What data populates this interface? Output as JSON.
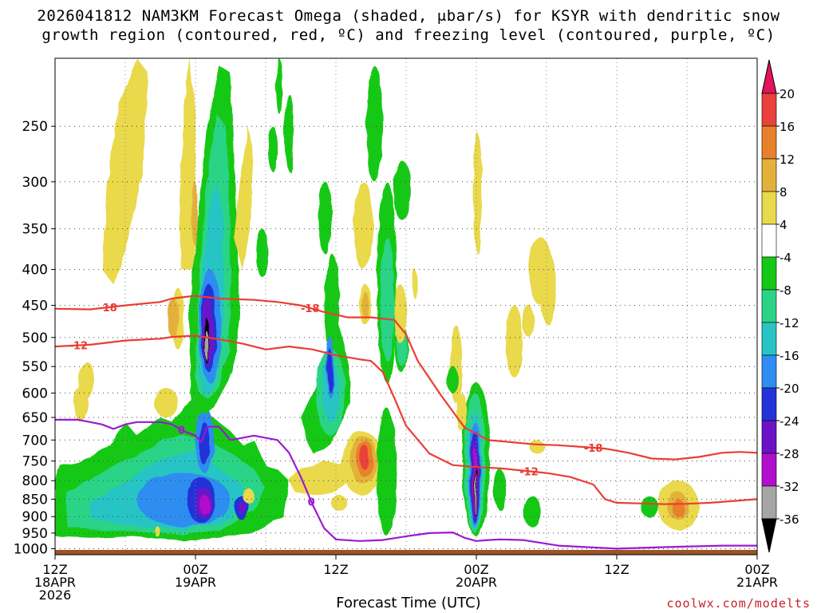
{
  "title_line1": "2026041812 NAM3KM Forecast Omega (shaded, μbar/s) for KSYR with dendritic snow",
  "title_line2": "growth region (contoured, red, ºC) and freezing level (contoured, purple, ºC)",
  "x_axis_title": "Forecast Time (UTC)",
  "credit": "coolwx.com/modelts",
  "chart_data": {
    "type": "heatmap",
    "title": "2026041812 NAM3KM Forecast Omega (shaded, μbar/s) for KSYR with dendritic snow growth region (contoured, red, ºC) and freezing level (contoured, purple, ºC)",
    "xlabel": "Forecast Time (UTC)",
    "ylabel": "",
    "x_unit": "hours since 2026-04-18 12Z",
    "xlim": [
      0,
      60
    ],
    "ylim": [
      1020,
      200
    ],
    "y_scale": "log-pressure (inverted)",
    "grid": true,
    "x_ticks": [
      {
        "value": 0,
        "lines": [
          "12Z",
          "18APR",
          "2026"
        ]
      },
      {
        "value": 12,
        "lines": [
          "00Z",
          "19APR"
        ]
      },
      {
        "value": 24,
        "lines": [
          "12Z"
        ]
      },
      {
        "value": 36,
        "lines": [
          "00Z",
          "20APR"
        ]
      },
      {
        "value": 48,
        "lines": [
          "12Z"
        ]
      },
      {
        "value": 60,
        "lines": [
          "00Z",
          "21APR"
        ]
      }
    ],
    "y_ticks": [
      250,
      300,
      350,
      400,
      450,
      500,
      550,
      600,
      650,
      700,
      750,
      800,
      850,
      900,
      950,
      1000
    ],
    "colorbar": {
      "labels": [
        "20",
        "16",
        "12",
        "8",
        "4",
        "-4",
        "-8",
        "-12",
        "-16",
        "-20",
        "-24",
        "-28",
        "-32",
        "-36"
      ],
      "colors": [
        "#e2135f",
        "#e8423a",
        "#e9802c",
        "#e3b13b",
        "#e9d94c",
        "#ffffff",
        "#14c814",
        "#2ad486",
        "#28c4c4",
        "#2e8df0",
        "#2333d8",
        "#6b12c7",
        "#b10fcb",
        "#a5a5a5",
        "#000000"
      ]
    },
    "series": [
      {
        "name": "-18",
        "type": "contour",
        "color": "#ec3c33",
        "x": [
          0,
          3,
          6,
          9,
          10,
          12,
          14,
          17,
          19,
          21,
          23,
          25,
          27,
          29,
          30,
          31,
          33,
          35,
          37,
          39,
          41,
          43,
          45,
          47,
          49,
          51,
          53,
          55,
          57,
          58.5,
          60
        ],
        "y": [
          455,
          456,
          450,
          445,
          440,
          436,
          440,
          442,
          445,
          450,
          460,
          468,
          468,
          472,
          495,
          540,
          605,
          672,
          700,
          705,
          710,
          712,
          716,
          720,
          730,
          744,
          746,
          740,
          730,
          728,
          730
        ]
      },
      {
        "name": "-12",
        "type": "contour",
        "color": "#ec3c33",
        "x": [
          0,
          3,
          6,
          9,
          10,
          12,
          14,
          16,
          18,
          20,
          22,
          23,
          24,
          26,
          27,
          28,
          29,
          30,
          32,
          34,
          36,
          38,
          40,
          42,
          44,
          46,
          47,
          48,
          50,
          52,
          54,
          56,
          58,
          60
        ],
        "y": [
          515,
          512,
          505,
          502,
          499,
          497,
          503,
          510,
          520,
          515,
          520,
          525,
          530,
          537,
          540,
          560,
          610,
          668,
          732,
          760,
          765,
          768,
          774,
          780,
          790,
          810,
          850,
          860,
          862,
          864,
          863,
          860,
          855,
          850
        ]
      },
      {
        "name": "0",
        "type": "contour",
        "color": "#9a1ad0",
        "x": [
          0,
          2,
          4,
          5,
          6,
          7,
          8,
          9,
          10,
          11,
          12,
          12.5,
          13,
          14,
          15,
          17,
          19,
          20,
          21,
          22,
          23,
          24,
          26,
          28,
          30,
          32,
          34,
          35,
          36,
          37,
          38,
          40,
          43,
          48,
          52,
          57,
          60
        ],
        "y": [
          655,
          655,
          665,
          675,
          665,
          660,
          660,
          660,
          665,
          680,
          690,
          705,
          670,
          670,
          700,
          690,
          700,
          730,
          790,
          865,
          935,
          970,
          975,
          972,
          960,
          950,
          948,
          965,
          975,
          972,
          970,
          972,
          990,
          1000,
          995,
          990,
          990
        ]
      }
    ],
    "omega_regions": [
      {
        "label": "ascent (negative omega)",
        "peak": -36,
        "x_range": [
          12,
          13
        ],
        "y_range": [
          460,
          560
        ]
      },
      {
        "label": "ascent (negative omega)",
        "peak": -32,
        "x_range": [
          12.5,
          13.5
        ],
        "y_range": [
          820,
          900
        ]
      },
      {
        "label": "ascent (negative omega)",
        "peak": -36,
        "x_range": [
          35.5,
          36.5
        ],
        "y_range": [
          740,
          900
        ]
      },
      {
        "label": "descent (positive omega)",
        "peak": 16,
        "x_range": [
          26,
          27.5
        ],
        "y_range": [
          700,
          800
        ]
      },
      {
        "label": "descent (positive omega)",
        "peak": 12,
        "x_range": [
          52,
          54
        ],
        "y_range": [
          850,
          920
        ]
      }
    ]
  }
}
